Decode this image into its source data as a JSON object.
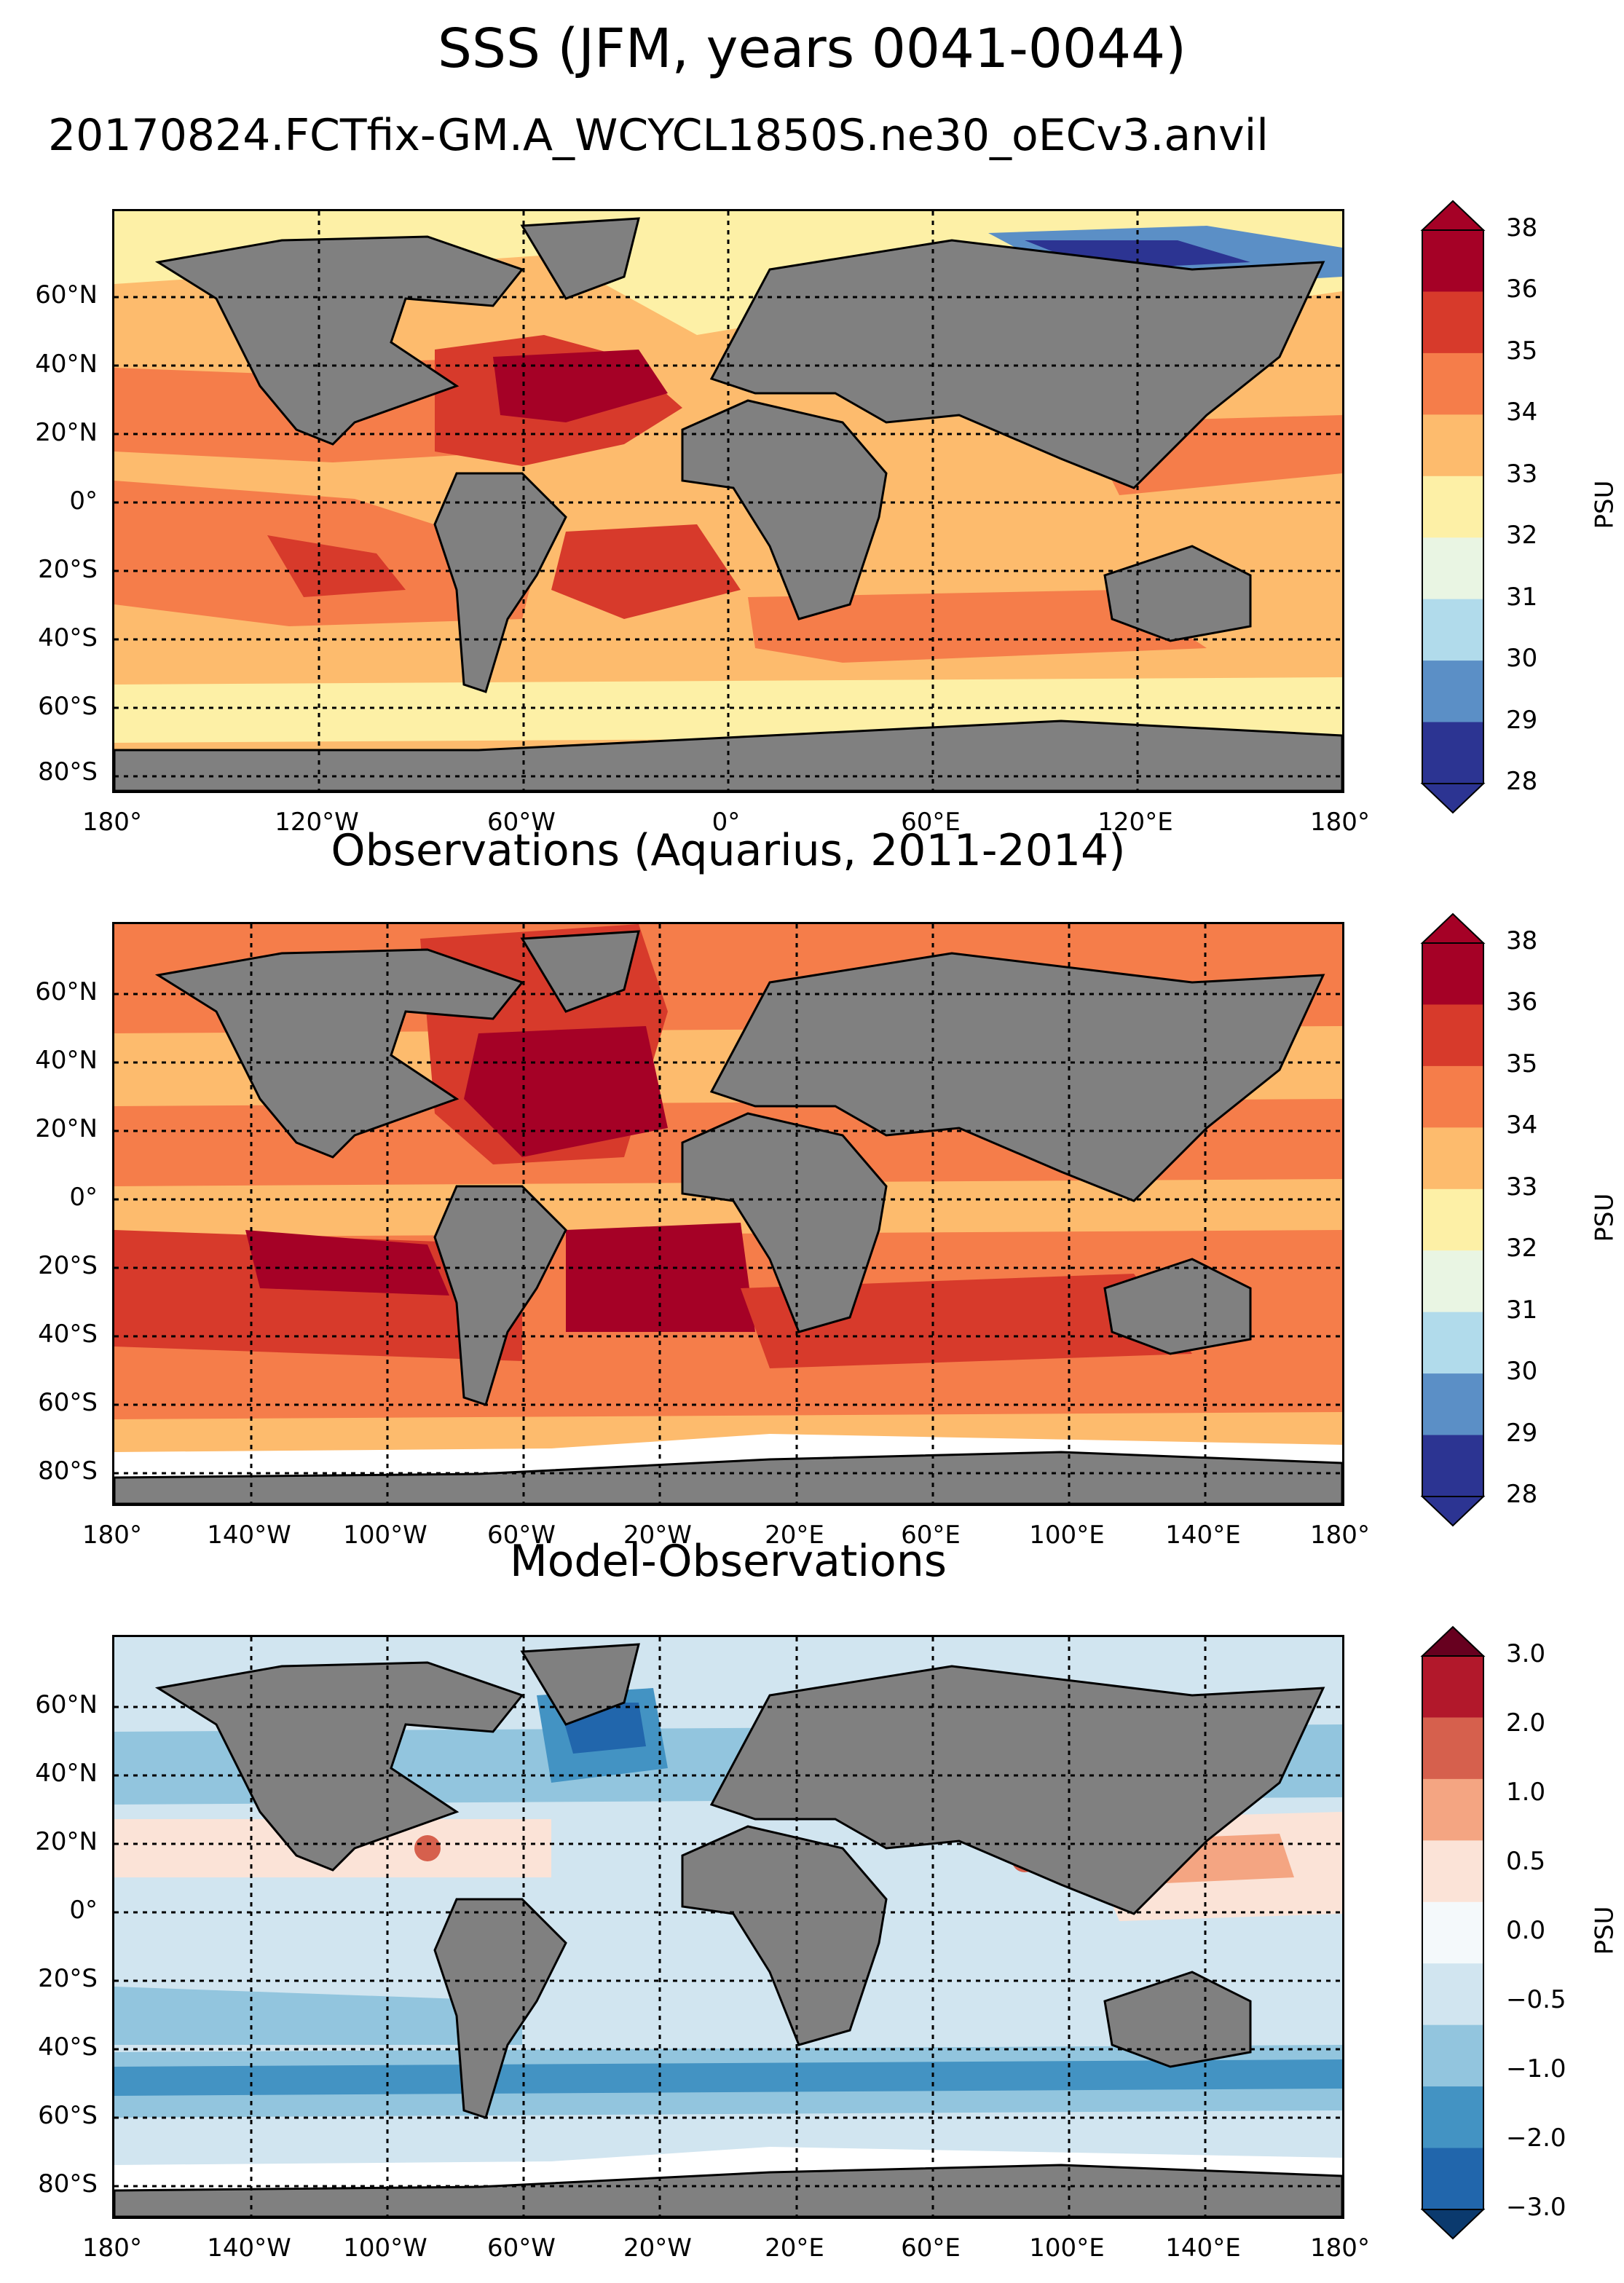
{
  "figure": {
    "suptitle": "SSS (JFM, years 0041-0044)",
    "subtitle": "20170824.FCTfix-GM.A_WCYCL1850S.ne30_oECv3.anvil",
    "land_color": "#808080",
    "grid_style": "dotted black"
  },
  "panels": [
    {
      "title": "",
      "lat_labels": [
        "60°N",
        "40°N",
        "20°N",
        "0°",
        "20°S",
        "40°S",
        "60°S",
        "80°S"
      ],
      "lon_labels": [
        "180°",
        "120°W",
        "60°W",
        "0°",
        "60°E",
        "120°E",
        "180°"
      ],
      "colorbar": {
        "unit": "PSU",
        "ticks": [
          "38",
          "36",
          "35",
          "34",
          "33",
          "32",
          "31",
          "30",
          "29",
          "28"
        ],
        "colors": [
          "#2c3492",
          "#5b8fc6",
          "#b1dbeb",
          "#e9f5e3",
          "#fdf0a6",
          "#fdbb6d",
          "#f57d4a",
          "#d73a2b",
          "#a50126"
        ],
        "extend": "both"
      }
    },
    {
      "title": "Observations (Aquarius, 2011-2014)",
      "lat_labels": [
        "60°N",
        "40°N",
        "20°N",
        "0°",
        "20°S",
        "40°S",
        "60°S",
        "80°S"
      ],
      "lon_labels": [
        "180°",
        "140°W",
        "100°W",
        "60°W",
        "20°W",
        "20°E",
        "60°E",
        "100°E",
        "140°E",
        "180°"
      ],
      "colorbar": {
        "unit": "PSU",
        "ticks": [
          "38",
          "36",
          "35",
          "34",
          "33",
          "32",
          "31",
          "30",
          "29",
          "28"
        ],
        "colors": [
          "#2c3492",
          "#5b8fc6",
          "#b1dbeb",
          "#e9f5e3",
          "#fdf0a6",
          "#fdbb6d",
          "#f57d4a",
          "#d73a2b",
          "#a50126"
        ],
        "extend": "both"
      }
    },
    {
      "title": "Model-Observations",
      "lat_labels": [
        "60°N",
        "40°N",
        "20°N",
        "0°",
        "20°S",
        "40°S",
        "60°S",
        "80°S"
      ],
      "lon_labels": [
        "180°",
        "140°W",
        "100°W",
        "60°W",
        "20°W",
        "20°E",
        "60°E",
        "100°E",
        "140°E",
        "180°"
      ],
      "colorbar": {
        "unit": "PSU",
        "ticks": [
          "3.0",
          "2.0",
          "1.0",
          "0.5",
          "0.0",
          "−0.5",
          "−1.0",
          "−2.0",
          "−3.0"
        ],
        "colors": [
          "#2166ac",
          "#4393c3",
          "#92c5de",
          "#d1e5f0",
          "#f4f9fb",
          "#fbe3d7",
          "#f4a582",
          "#d6604d",
          "#b2182b"
        ],
        "extend": "both",
        "extend_colors": [
          "#0b3a6e",
          "#67001f"
        ]
      }
    }
  ]
}
